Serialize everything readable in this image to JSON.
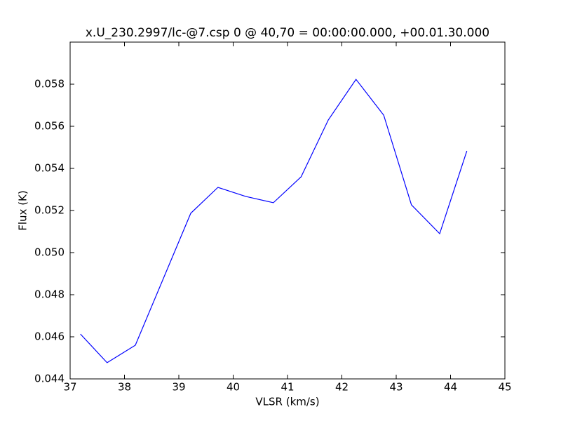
{
  "chart_data": {
    "type": "line",
    "title": "x.U_230.2997/lc-@7.csp 0 @ 40,70 = 00:00:00.000, +00.01.30.000",
    "x_label": "VLSR (km/s)",
    "y_label": "Flux (K)",
    "x": [
      37.19,
      37.68,
      38.2,
      39.22,
      39.72,
      40.23,
      40.74,
      41.25,
      41.75,
      42.26,
      42.77,
      43.28,
      43.8,
      44.3
    ],
    "series": [
      {
        "color": "#0000ff",
        "values": [
          0.04613,
          0.04477,
          0.0456,
          0.05187,
          0.0531,
          0.05267,
          0.05237,
          0.0536,
          0.0563,
          0.05823,
          0.05653,
          0.05227,
          0.0509,
          0.05483
        ]
      }
    ],
    "xlim": [
      37,
      45
    ],
    "xticks": [
      37,
      38,
      39,
      40,
      41,
      42,
      43,
      44,
      45
    ],
    "ylim": [
      0.044,
      0.06
    ],
    "yticks": [
      0.044,
      0.046,
      0.048,
      {
        "value": 0.05,
        "label": "0.050"
      },
      0.052,
      0.054,
      0.056,
      0.058
    ],
    "grid": false
  }
}
